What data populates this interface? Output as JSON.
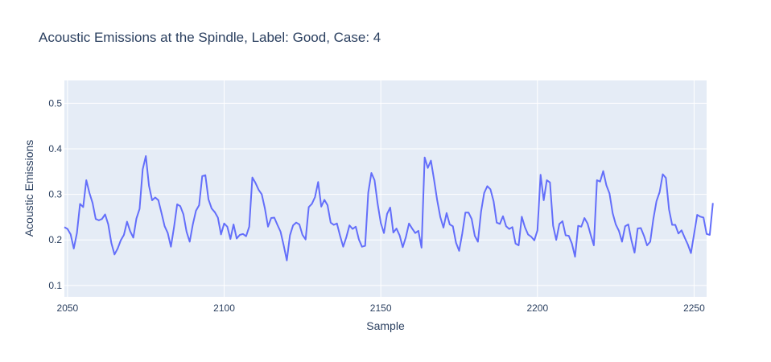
{
  "chart_data": {
    "type": "line",
    "title": "Acoustic Emissions at the Spindle, Label: Good, Case: 4",
    "xlabel": "Sample",
    "ylabel": "Acoustic Emissions",
    "xlim": [
      2049,
      2254
    ],
    "ylim": [
      0.075,
      0.55
    ],
    "xticks": [
      2050,
      2100,
      2150,
      2200,
      2250
    ],
    "yticks": [
      0.1,
      0.2,
      0.3,
      0.4,
      0.5
    ],
    "grid": true,
    "colors": {
      "line": "#636efa",
      "plot_bg": "#e5ecf6",
      "grid": "#ffffff",
      "text": "#2a3f5f"
    },
    "series": [
      {
        "x_start": 2049,
        "x_step": 1,
        "values": [
          0.228,
          0.224,
          0.212,
          0.181,
          0.215,
          0.279,
          0.272,
          0.331,
          0.303,
          0.281,
          0.246,
          0.243,
          0.246,
          0.256,
          0.234,
          0.193,
          0.168,
          0.181,
          0.199,
          0.211,
          0.24,
          0.219,
          0.205,
          0.247,
          0.268,
          0.355,
          0.384,
          0.319,
          0.287,
          0.293,
          0.287,
          0.259,
          0.23,
          0.215,
          0.185,
          0.228,
          0.278,
          0.274,
          0.256,
          0.218,
          0.196,
          0.234,
          0.264,
          0.276,
          0.34,
          0.342,
          0.289,
          0.269,
          0.261,
          0.249,
          0.212,
          0.236,
          0.229,
          0.202,
          0.234,
          0.203,
          0.211,
          0.213,
          0.208,
          0.229,
          0.337,
          0.325,
          0.31,
          0.3,
          0.269,
          0.229,
          0.248,
          0.249,
          0.233,
          0.218,
          0.188,
          0.155,
          0.21,
          0.232,
          0.238,
          0.234,
          0.211,
          0.201,
          0.272,
          0.279,
          0.294,
          0.327,
          0.273,
          0.288,
          0.276,
          0.238,
          0.233,
          0.236,
          0.209,
          0.185,
          0.206,
          0.232,
          0.224,
          0.229,
          0.201,
          0.185,
          0.187,
          0.304,
          0.347,
          0.331,
          0.279,
          0.237,
          0.215,
          0.257,
          0.271,
          0.216,
          0.225,
          0.21,
          0.184,
          0.206,
          0.236,
          0.225,
          0.215,
          0.22,
          0.183,
          0.381,
          0.358,
          0.374,
          0.332,
          0.287,
          0.25,
          0.227,
          0.259,
          0.234,
          0.23,
          0.194,
          0.176,
          0.214,
          0.26,
          0.26,
          0.246,
          0.209,
          0.196,
          0.262,
          0.303,
          0.318,
          0.311,
          0.285,
          0.238,
          0.235,
          0.252,
          0.23,
          0.224,
          0.228,
          0.192,
          0.188,
          0.251,
          0.228,
          0.212,
          0.207,
          0.199,
          0.221,
          0.343,
          0.287,
          0.331,
          0.326,
          0.231,
          0.2,
          0.235,
          0.241,
          0.21,
          0.209,
          0.192,
          0.163,
          0.231,
          0.229,
          0.248,
          0.236,
          0.211,
          0.188,
          0.331,
          0.328,
          0.351,
          0.32,
          0.302,
          0.259,
          0.234,
          0.22,
          0.196,
          0.23,
          0.234,
          0.199,
          0.172,
          0.225,
          0.226,
          0.209,
          0.188,
          0.196,
          0.246,
          0.285,
          0.305,
          0.344,
          0.336,
          0.267,
          0.233,
          0.233,
          0.214,
          0.221,
          0.205,
          0.19,
          0.171,
          0.213,
          0.255,
          0.251,
          0.249,
          0.213,
          0.211,
          0.281
        ]
      }
    ]
  }
}
